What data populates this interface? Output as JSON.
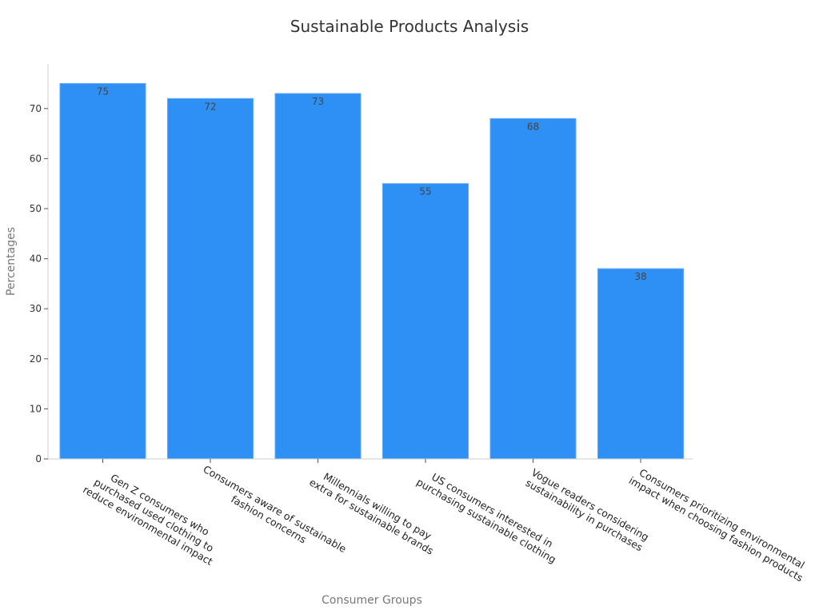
{
  "chart_data": {
    "type": "bar",
    "title": "Sustainable Products Analysis",
    "xlabel": "Consumer Groups",
    "ylabel": "Percentages",
    "categories": [
      "Gen Z consumers who purchased used clothing to reduce environmental impact",
      "Consumers aware of sustainable fashion concerns",
      "Millennials willing to pay extra for sustainable brands",
      "US consumers interested in purchasing sustainable clothing",
      "Vogue readers considering sustainability in purchases",
      "Consumers prioritizing environmental impact when choosing fashion products"
    ],
    "category_label_lines": [
      [
        "Gen Z consumers who",
        "purchased used clothing to",
        "reduce environmental impact"
      ],
      [
        "Consumers aware of sustainable",
        "fashion concerns"
      ],
      [
        "Millennials willing to pay",
        "extra for sustainable brands"
      ],
      [
        "US consumers interested in",
        "purchasing sustainable clothing"
      ],
      [
        "Vogue readers considering",
        "sustainability in purchases"
      ],
      [
        "Consumers prioritizing environmental",
        "impact when choosing fashion products"
      ]
    ],
    "values": [
      75,
      72,
      73,
      55,
      68,
      38
    ],
    "data_labels": [
      "75",
      "72",
      "73",
      "55",
      "68",
      "38"
    ],
    "yticks": [
      0,
      10,
      20,
      30,
      40,
      50,
      60,
      70
    ],
    "ylim": [
      0,
      79
    ],
    "bar_color": "#2e90f5",
    "grid": false,
    "legend": "none"
  }
}
